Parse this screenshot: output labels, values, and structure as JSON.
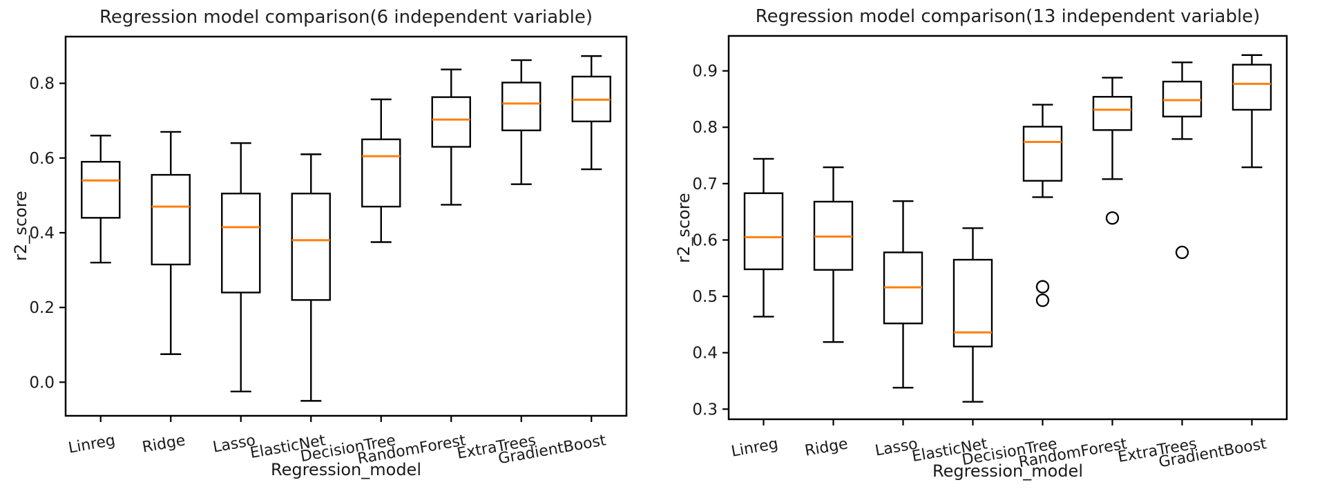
{
  "figure": {
    "background": "#ffffff",
    "text_color": "#1a1a1a"
  },
  "chart_data": [
    {
      "type": "boxplot",
      "title": "Regression model comparison(6 independent variable)",
      "xlabel": "Regression_model",
      "ylabel": "r2_score",
      "categories": [
        "Linreg",
        "Ridge",
        "Lasso",
        "ElasticNet",
        "DecisionTree",
        "RandomForest",
        "ExtraTrees",
        "GradientBoost"
      ],
      "yticks": [
        0.0,
        0.2,
        0.4,
        0.6,
        0.8
      ],
      "ylim": [
        -0.09,
        0.925
      ],
      "grid": false,
      "legend": null,
      "colors": {
        "box_edge": "#000000",
        "median": "#ff7f0e",
        "box_fill": "#ffffff"
      },
      "series": [
        {
          "name": "Linreg",
          "whislo": 0.32,
          "q1": 0.44,
          "med": 0.54,
          "q3": 0.59,
          "whishi": 0.66,
          "fliers": []
        },
        {
          "name": "Ridge",
          "whislo": 0.075,
          "q1": 0.315,
          "med": 0.47,
          "q3": 0.555,
          "whishi": 0.67,
          "fliers": []
        },
        {
          "name": "Lasso",
          "whislo": -0.025,
          "q1": 0.24,
          "med": 0.415,
          "q3": 0.505,
          "whishi": 0.64,
          "fliers": []
        },
        {
          "name": "ElasticNet",
          "whislo": -0.05,
          "q1": 0.22,
          "med": 0.38,
          "q3": 0.505,
          "whishi": 0.61,
          "fliers": []
        },
        {
          "name": "DecisionTree",
          "whislo": 0.375,
          "q1": 0.47,
          "med": 0.605,
          "q3": 0.65,
          "whishi": 0.757,
          "fliers": []
        },
        {
          "name": "RandomForest",
          "whislo": 0.475,
          "q1": 0.63,
          "med": 0.703,
          "q3": 0.763,
          "whishi": 0.837,
          "fliers": []
        },
        {
          "name": "ExtraTrees",
          "whislo": 0.53,
          "q1": 0.674,
          "med": 0.746,
          "q3": 0.802,
          "whishi": 0.862,
          "fliers": []
        },
        {
          "name": "GradientBoost",
          "whislo": 0.57,
          "q1": 0.698,
          "med": 0.756,
          "q3": 0.818,
          "whishi": 0.873,
          "fliers": []
        }
      ]
    },
    {
      "type": "boxplot",
      "title": "Regression model comparison(13 independent variable)",
      "xlabel": "Regression_model",
      "ylabel": "r2_score",
      "categories": [
        "Linreg",
        "Ridge",
        "Lasso",
        "ElasticNet",
        "DecisionTree",
        "RandomForest",
        "ExtraTrees",
        "GradientBoost"
      ],
      "yticks": [
        0.3,
        0.4,
        0.5,
        0.6,
        0.7,
        0.8,
        0.9
      ],
      "ylim": [
        0.282,
        0.962
      ],
      "grid": false,
      "legend": null,
      "colors": {
        "box_edge": "#000000",
        "median": "#ff7f0e",
        "box_fill": "#ffffff"
      },
      "series": [
        {
          "name": "Linreg",
          "whislo": 0.464,
          "q1": 0.548,
          "med": 0.605,
          "q3": 0.683,
          "whishi": 0.744,
          "fliers": []
        },
        {
          "name": "Ridge",
          "whislo": 0.419,
          "q1": 0.547,
          "med": 0.606,
          "q3": 0.668,
          "whishi": 0.729,
          "fliers": []
        },
        {
          "name": "Lasso",
          "whislo": 0.338,
          "q1": 0.452,
          "med": 0.516,
          "q3": 0.578,
          "whishi": 0.669,
          "fliers": []
        },
        {
          "name": "ElasticNet",
          "whislo": 0.313,
          "q1": 0.411,
          "med": 0.436,
          "q3": 0.565,
          "whishi": 0.621,
          "fliers": []
        },
        {
          "name": "DecisionTree",
          "whislo": 0.676,
          "q1": 0.705,
          "med": 0.774,
          "q3": 0.801,
          "whishi": 0.84,
          "fliers": [
            0.517,
            0.493
          ]
        },
        {
          "name": "RandomForest",
          "whislo": 0.708,
          "q1": 0.795,
          "med": 0.831,
          "q3": 0.854,
          "whishi": 0.888,
          "fliers": [
            0.639
          ]
        },
        {
          "name": "ExtraTrees",
          "whislo": 0.779,
          "q1": 0.819,
          "med": 0.848,
          "q3": 0.881,
          "whishi": 0.915,
          "fliers": [
            0.578
          ]
        },
        {
          "name": "GradientBoost",
          "whislo": 0.729,
          "q1": 0.831,
          "med": 0.877,
          "q3": 0.911,
          "whishi": 0.928,
          "fliers": []
        }
      ]
    }
  ]
}
